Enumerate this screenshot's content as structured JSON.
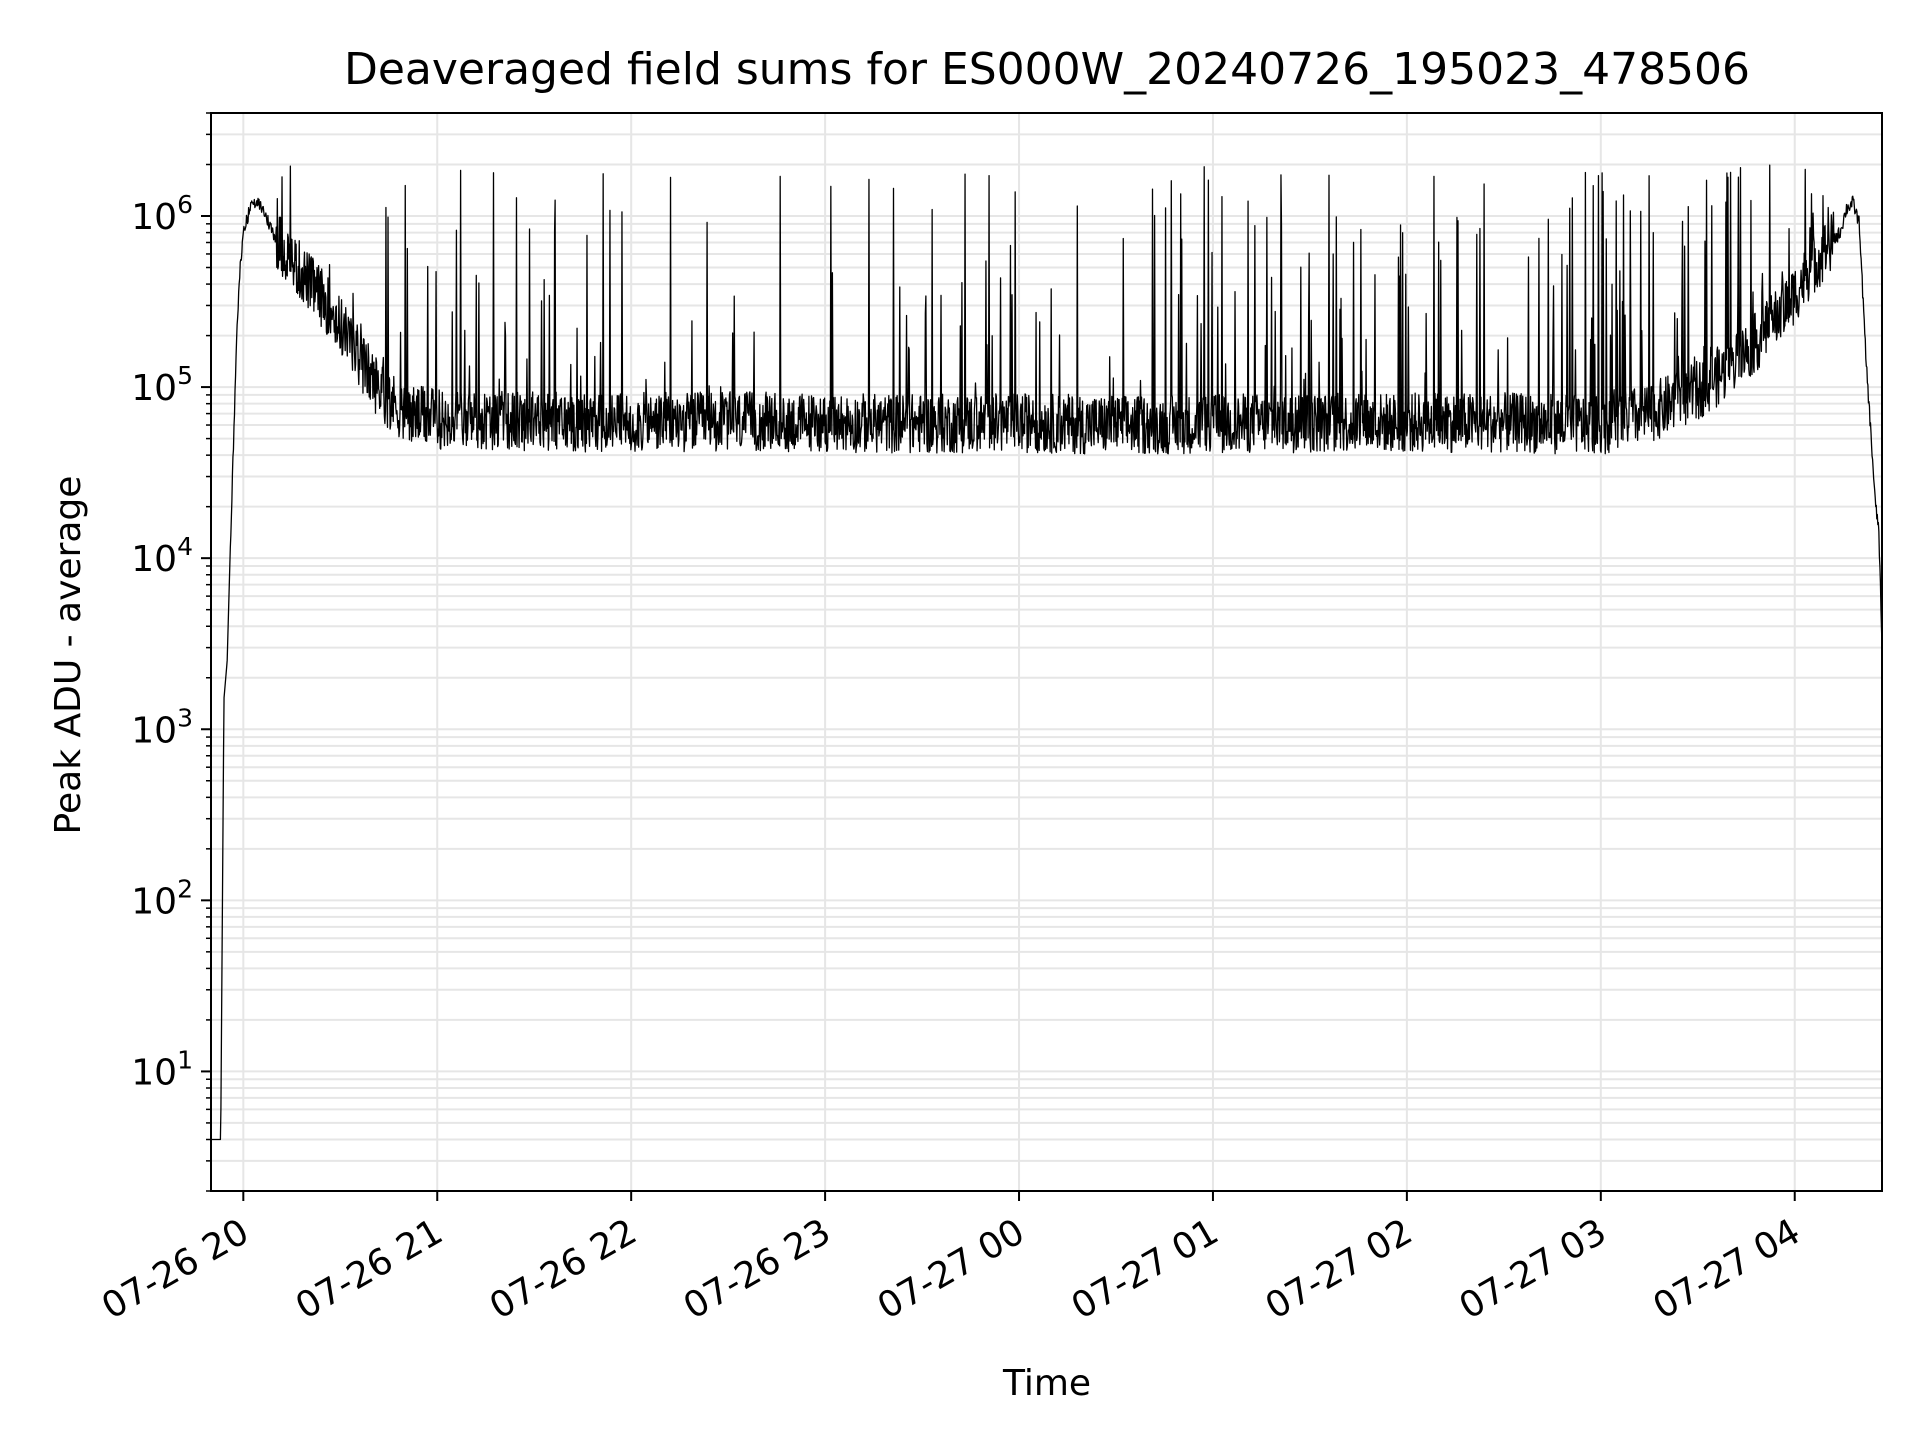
{
  "chart_data": {
    "type": "line",
    "title": "Deaveraged field sums for ES000W_20240726_195023_478506",
    "xlabel": "Time",
    "ylabel": "Peak ADU - average",
    "yscale": "log",
    "ylim": [
      2,
      4000000
    ],
    "xlim": [
      "07-26 19:50",
      "07-27 04:27"
    ],
    "grid": true,
    "x_ticks": [
      {
        "label": "07-26 20",
        "time": "07-26 20:00"
      },
      {
        "label": "07-26 21",
        "time": "07-26 21:00"
      },
      {
        "label": "07-26 22",
        "time": "07-26 22:00"
      },
      {
        "label": "07-26 23",
        "time": "07-26 23:00"
      },
      {
        "label": "07-27 00",
        "time": "07-27 00:00"
      },
      {
        "label": "07-27 01",
        "time": "07-27 01:00"
      },
      {
        "label": "07-27 02",
        "time": "07-27 02:00"
      },
      {
        "label": "07-27 03",
        "time": "07-27 03:00"
      },
      {
        "label": "07-27 04",
        "time": "07-27 04:00"
      }
    ],
    "y_ticks": [
      {
        "base": "10",
        "exp": "1",
        "value": 10
      },
      {
        "base": "10",
        "exp": "2",
        "value": 100
      },
      {
        "base": "10",
        "exp": "3",
        "value": 1000
      },
      {
        "base": "10",
        "exp": "4",
        "value": 10000
      },
      {
        "base": "10",
        "exp": "5",
        "value": 100000
      },
      {
        "base": "10",
        "exp": "6",
        "value": 1000000
      }
    ],
    "series": [
      {
        "color": "#000000",
        "x": [
          "07-26 19:50",
          "07-26 19:51",
          "07-26 19:52",
          "07-26 19:53",
          "07-26 19:54",
          "07-26 19:55",
          "07-26 19:56",
          "07-26 19:57",
          "07-26 19:58",
          "07-26 19:59",
          "07-26 20:00",
          "07-26 20:02",
          "07-26 20:04",
          "07-26 20:06",
          "07-26 20:08",
          "07-26 20:10",
          "07-26 20:15",
          "07-26 20:20",
          "07-26 20:25",
          "07-26 20:30",
          "07-26 20:35",
          "07-26 20:40",
          "07-26 20:45",
          "07-26 20:50",
          "07-26 21:00",
          "07-26 21:30",
          "07-26 22:00",
          "07-26 22:30",
          "07-26 23:00",
          "07-26 23:30",
          "07-27 00:00",
          "07-27 00:30",
          "07-27 01:00",
          "07-27 01:30",
          "07-27 02:00",
          "07-27 02:30",
          "07-27 03:00",
          "07-27 03:15",
          "07-27 03:30",
          "07-27 03:40",
          "07-27 03:50",
          "07-27 04:00",
          "07-27 04:05",
          "07-27 04:10",
          "07-27 04:14",
          "07-27 04:16",
          "07-27 04:18",
          "07-27 04:20",
          "07-27 04:22",
          "07-27 04:24",
          "07-27 04:25",
          "07-27 04:26",
          "07-27 04:27"
        ],
        "y": [
          4,
          4,
          4,
          4,
          1500,
          2500,
          12000,
          50000,
          200000,
          500000,
          800000,
          1100000,
          1200000,
          1100000,
          900000,
          750000,
          550000,
          420000,
          320000,
          230000,
          160000,
          110000,
          85000,
          70000,
          65000,
          63000,
          62000,
          63000,
          62000,
          61000,
          62000,
          60000,
          61000,
          62000,
          62000,
          62000,
          60000,
          70000,
          95000,
          130000,
          200000,
          350000,
          500000,
          650000,
          800000,
          1100000,
          1200000,
          900000,
          150000,
          40000,
          20000,
          15000,
          3000
        ]
      }
    ],
    "spikes_note": "",
    "spike_peaks": [
      1800000,
      2000000
    ]
  }
}
